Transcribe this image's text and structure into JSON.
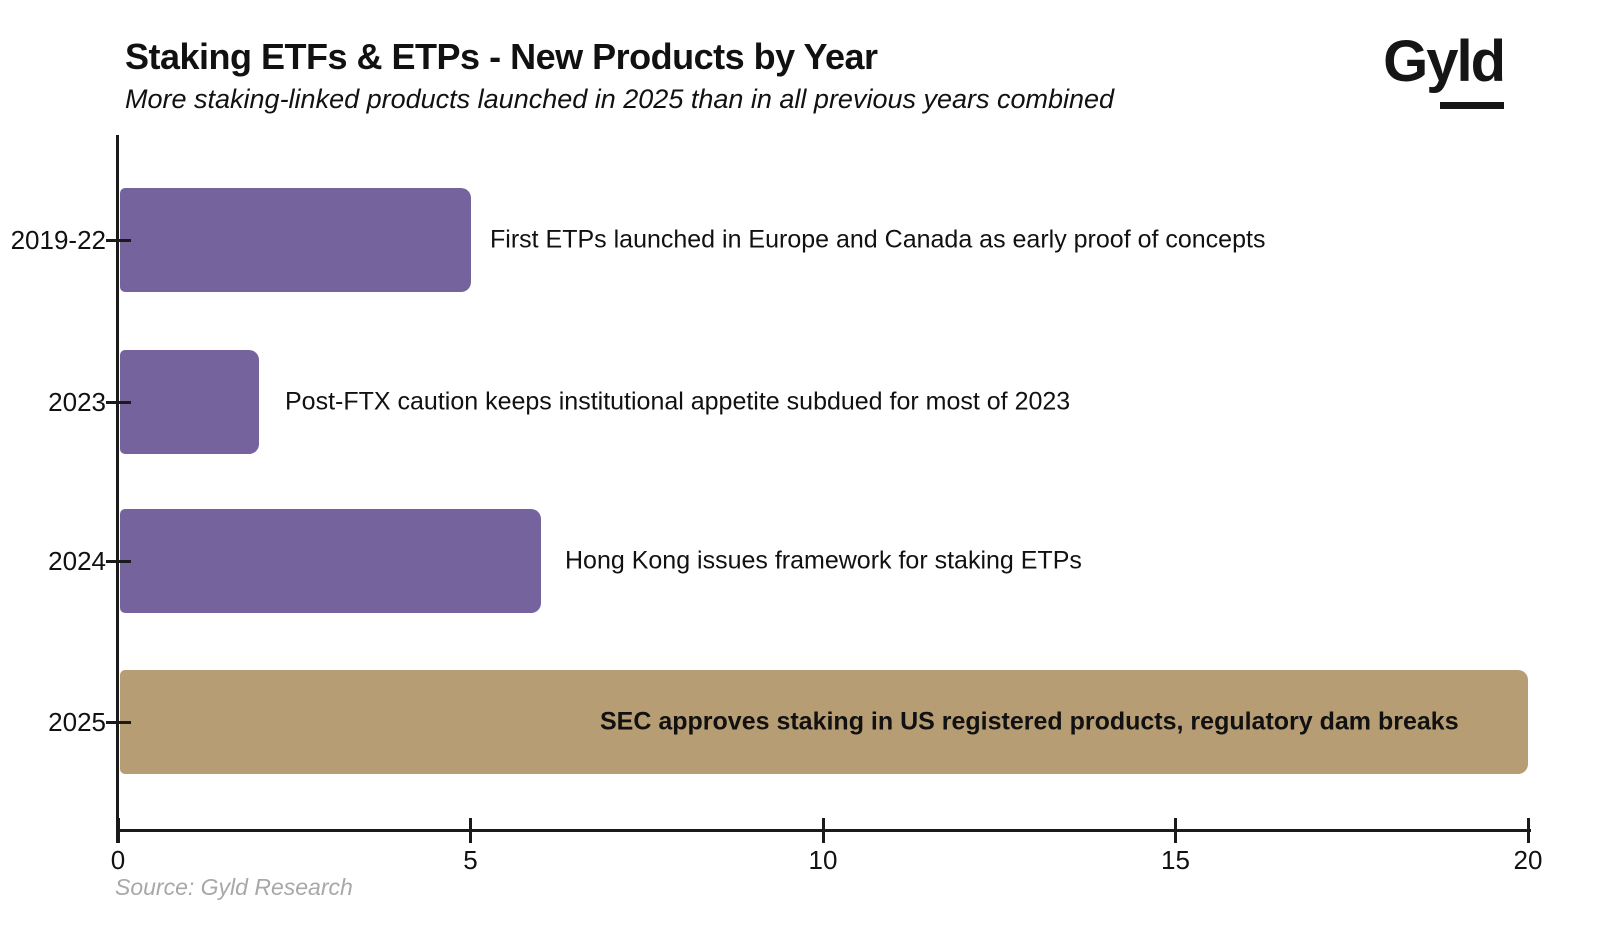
{
  "header": {
    "title": "Staking ETFs & ETPs - New Products by Year",
    "subtitle": "More staking-linked products launched in 2025 than in all previous years combined",
    "logo": {
      "prefix": "Gy",
      "underlined": "ld"
    }
  },
  "chart_data": {
    "type": "bar",
    "orientation": "horizontal",
    "title": "Staking ETFs & ETPs - New Products by Year",
    "subtitle": "More staking-linked products launched in 2025 than in all previous years combined",
    "categories": [
      "2019-22",
      "2023",
      "2024",
      "2025"
    ],
    "values": [
      5,
      2,
      6,
      20
    ],
    "annotations": [
      "First ETPs launched in Europe and Canada as early proof of concepts",
      "Post-FTX caution keeps institutional appetite subdued for most of 2023",
      "Hong Kong issues framework for staking ETPs",
      "SEC approves staking in US registered products, regulatory dam breaks"
    ],
    "annotation_bold": [
      false,
      false,
      false,
      true
    ],
    "bar_colors": [
      "#75639E",
      "#75639E",
      "#75639E",
      "#B69D73"
    ],
    "xlim": [
      0,
      20
    ],
    "x_ticks": [
      0,
      5,
      10,
      15,
      20
    ],
    "xlabel": "",
    "ylabel": "",
    "grid": false,
    "legend": false,
    "axis_color": "#1a1a1a"
  },
  "footer": {
    "source": "Source: Gyld Research"
  },
  "colors": {
    "purple": "#75639E",
    "tan": "#B69D73",
    "axis": "#1a1a1a",
    "source_gray": "#a8a8a8",
    "background": "#ffffff"
  }
}
